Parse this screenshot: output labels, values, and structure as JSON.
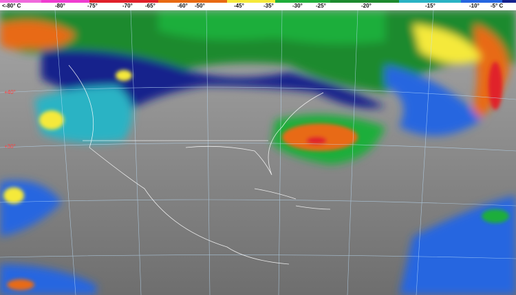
{
  "legend": {
    "colors": [
      "#f06adc",
      "#f03cd0",
      "#e0202a",
      "#e86a12",
      "#f5e93a",
      "#1fae3a",
      "#1c8a2e",
      "#29b3c4",
      "#2566e0",
      "#14208c"
    ],
    "ticks": [
      "<-80° C",
      "-80°",
      "-75°",
      "-70°",
      "-65°",
      "-60°",
      "-50°",
      "-45°",
      "-35°",
      "-30°",
      "-25°",
      "-20°",
      "-15°",
      "-10°",
      "-5° C"
    ]
  },
  "map": {
    "latitude_labels": [
      "+40°",
      "+30°"
    ],
    "background_gray": "#8a8a8a"
  }
}
